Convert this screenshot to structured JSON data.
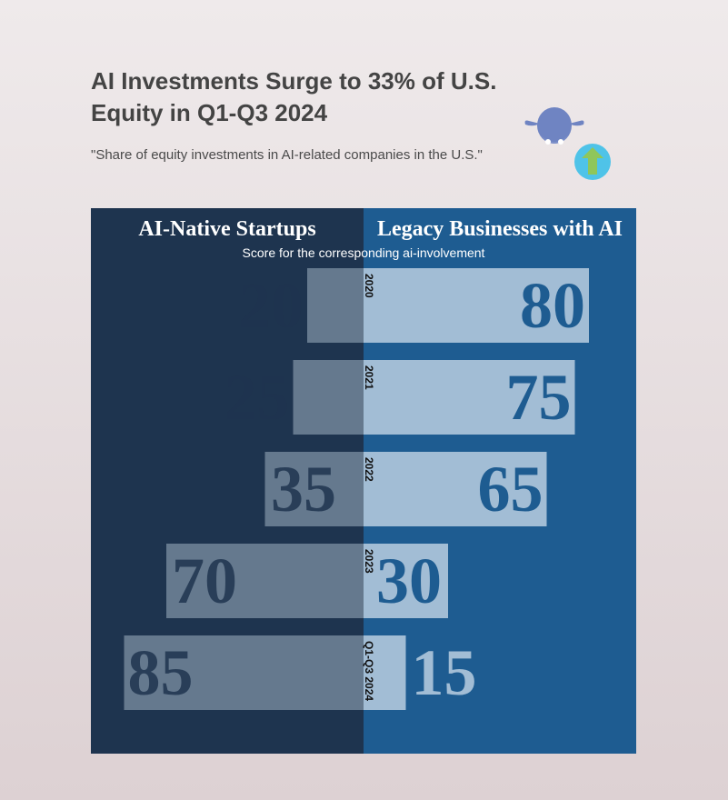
{
  "title": "AI Investments Surge to 33% of U.S. Equity in Q1-Q3 2024",
  "subtitle": "\"Share of equity investments in AI-related companies in the U.S.\"",
  "icons": {
    "mascot": "cow-head-icon",
    "trend": "up-arrow-icon"
  },
  "colors": {
    "left_panel": "#1e344f",
    "right_panel": "#1e5c91",
    "bar_fill": "#c8d8e8",
    "bar_opacity": 0.42,
    "left_value_text": "#1e344f",
    "right_value_text": "#1e5c91",
    "header_text": "#ffffff",
    "year_text": "#111111",
    "icon_body": "#6f84c2",
    "icon_bubble": "#4fc3e8",
    "icon_arrow": "#8fc65a"
  },
  "chart_data": {
    "type": "bar",
    "orientation": "diverging-horizontal",
    "header_left": "AI-Native Startups",
    "header_right": "Legacy Businesses with AI",
    "axis_note": "Score for the corresponding ai-involvement",
    "categories": [
      "2020",
      "2021",
      "2022",
      "2023",
      "Q1-Q3 2024"
    ],
    "series": [
      {
        "name": "AI-Native Startups",
        "side": "left",
        "values": [
          20,
          25,
          35,
          70,
          85
        ]
      },
      {
        "name": "Legacy Businesses with AI",
        "side": "right",
        "values": [
          80,
          75,
          65,
          30,
          15
        ]
      }
    ],
    "xlim": [
      0,
      100
    ],
    "grid": false,
    "legend": "none"
  }
}
